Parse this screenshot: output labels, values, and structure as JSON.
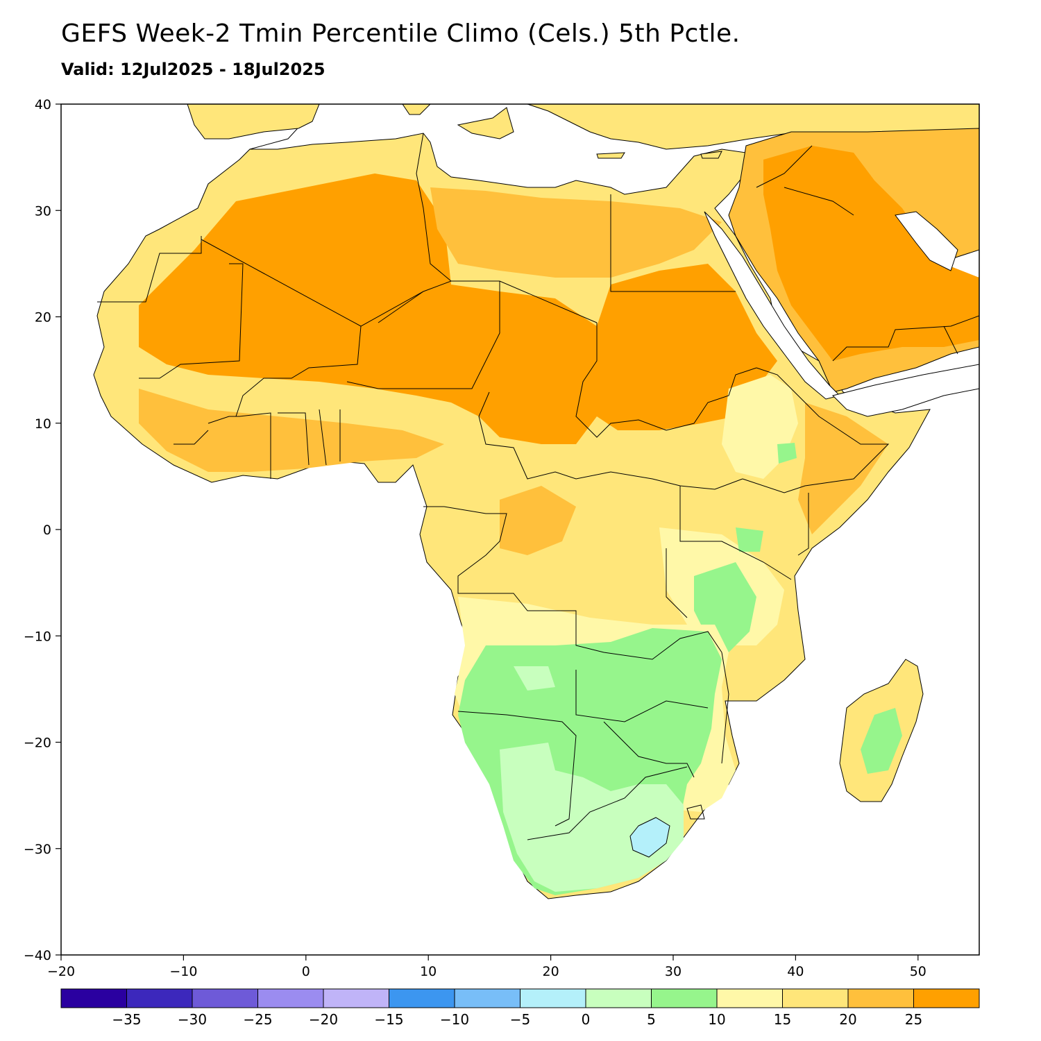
{
  "title": "GEFS Week-2 Tmin Percentile Climo (Cels.) 5th Pctle.",
  "subtitle": "Valid: 12Jul2025 - 18Jul2025",
  "chart_data": {
    "type": "heatmap",
    "title": "GEFS Week-2 Tmin Percentile Climo (Cels.) 5th Pctle.",
    "subtitle": "Valid: 12Jul2025 - 18Jul2025",
    "region": "Africa and Arabian Peninsula",
    "xlim": [
      -20,
      55
    ],
    "ylim": [
      -40,
      40
    ],
    "x_ticks": [
      "−20",
      "−10",
      "0",
      "10",
      "20",
      "30",
      "40",
      "50"
    ],
    "x_tick_values": [
      -20,
      -10,
      0,
      10,
      20,
      30,
      40,
      50
    ],
    "y_ticks": [
      "40",
      "30",
      "20",
      "10",
      "0",
      "−10",
      "−20",
      "−30",
      "−40"
    ],
    "y_tick_values": [
      40,
      30,
      20,
      10,
      0,
      -10,
      -20,
      -30,
      -40
    ],
    "colorbar": {
      "labels": [
        "−35",
        "−30",
        "−25",
        "−20",
        "−15",
        "−10",
        "−5",
        "0",
        "5",
        "10",
        "15",
        "20",
        "25"
      ],
      "colors": [
        "#2a00a0",
        "#3c28bc",
        "#6e5ad8",
        "#9b8cf0",
        "#c0b4f8",
        "#3c96f0",
        "#78bef8",
        "#b4f0fa",
        "#c8ffbe",
        "#96f58c",
        "#fff8a8",
        "#ffe67a",
        "#ffc03c",
        "#ffa000"
      ]
    },
    "regions": [
      {
        "name": "Sahara / Sahel interior",
        "value_range": "25+"
      },
      {
        "name": "Arabian Peninsula interior",
        "value_range": "25+"
      },
      {
        "name": "North African coast",
        "value_range": "15-25"
      },
      {
        "name": "Central Africa",
        "value_range": "15-25"
      },
      {
        "name": "Ethiopian Highlands",
        "value_range": "10-15"
      },
      {
        "name": "Angola / Zambia / Zimbabwe",
        "value_range": "5-10"
      },
      {
        "name": "Namibia / Botswana",
        "value_range": "0-10"
      },
      {
        "name": "South Africa interior",
        "value_range": "0-5"
      },
      {
        "name": "Lesotho",
        "value_range": "-5-0"
      },
      {
        "name": "Madagascar",
        "value_range": "10-20"
      }
    ]
  }
}
